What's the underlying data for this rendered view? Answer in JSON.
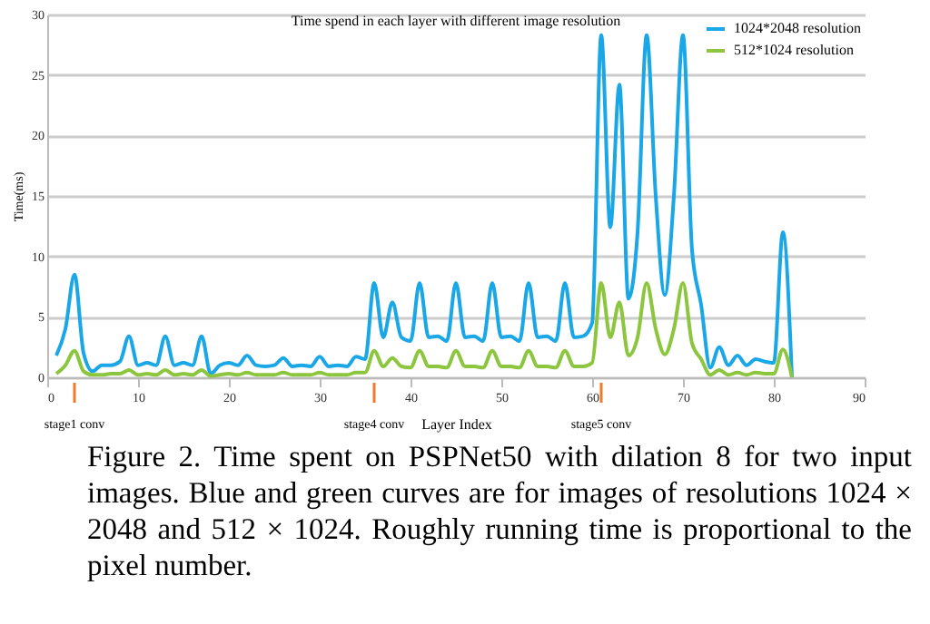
{
  "chart_data": {
    "type": "line",
    "title": "Time spend  in each layer  with different image resolution",
    "xlabel": "Layer Index",
    "ylabel": "Time(ms)",
    "x": [
      1,
      2,
      3,
      4,
      5,
      6,
      7,
      8,
      9,
      10,
      11,
      12,
      13,
      14,
      15,
      16,
      17,
      18,
      19,
      20,
      21,
      22,
      23,
      24,
      25,
      26,
      27,
      28,
      29,
      30,
      31,
      32,
      33,
      34,
      35,
      36,
      37,
      38,
      39,
      40,
      41,
      42,
      43,
      44,
      45,
      46,
      47,
      48,
      49,
      50,
      51,
      52,
      53,
      54,
      55,
      56,
      57,
      58,
      59,
      60,
      61,
      62,
      63,
      64,
      65,
      66,
      67,
      68,
      69,
      70,
      71,
      72,
      73,
      74,
      75,
      76,
      77,
      78,
      79,
      80,
      81,
      82
    ],
    "series": [
      {
        "name": "1024*2048 resolution",
        "color": "#1aa7e8",
        "values": [
          1.8,
          4.0,
          8.5,
          2.0,
          0.5,
          1.0,
          1.0,
          1.3,
          3.4,
          1.0,
          1.2,
          1.0,
          3.4,
          1.0,
          1.2,
          1.0,
          3.4,
          0.3,
          1.0,
          1.2,
          1.0,
          1.8,
          1.0,
          0.9,
          1.0,
          1.6,
          0.9,
          1.0,
          0.9,
          1.7,
          0.9,
          1.0,
          0.9,
          1.7,
          1.5,
          7.8,
          3.3,
          6.2,
          3.3,
          3.0,
          7.8,
          3.3,
          3.4,
          3.0,
          7.8,
          3.3,
          3.4,
          3.0,
          7.8,
          3.3,
          3.4,
          3.0,
          7.8,
          3.3,
          3.4,
          3.0,
          7.8,
          3.3,
          3.4,
          4.5,
          28.3,
          12.4,
          24.2,
          6.5,
          12.0,
          28.3,
          15.0,
          6.8,
          15.0,
          28.3,
          10.5,
          6.0,
          0.8,
          2.5,
          1.0,
          1.8,
          1.0,
          1.5,
          1.3,
          1.2,
          12.0,
          0
        ]
      },
      {
        "name": "512*1024 resolution",
        "color": "#8cc63f",
        "values": [
          0.3,
          1.0,
          2.2,
          0.5,
          0.2,
          0.2,
          0.3,
          0.3,
          0.6,
          0.2,
          0.3,
          0.2,
          0.6,
          0.2,
          0.3,
          0.2,
          0.6,
          0.1,
          0.2,
          0.3,
          0.2,
          0.4,
          0.2,
          0.2,
          0.2,
          0.4,
          0.2,
          0.2,
          0.2,
          0.4,
          0.2,
          0.2,
          0.2,
          0.4,
          0.4,
          2.2,
          0.9,
          1.6,
          0.9,
          0.8,
          2.2,
          0.9,
          0.9,
          0.8,
          2.2,
          0.9,
          0.9,
          0.8,
          2.2,
          0.9,
          0.9,
          0.8,
          2.2,
          0.9,
          0.9,
          0.8,
          2.2,
          0.9,
          0.9,
          1.2,
          7.8,
          3.3,
          6.2,
          1.8,
          3.3,
          7.8,
          4.0,
          1.9,
          4.0,
          7.8,
          2.8,
          1.5,
          0.2,
          0.6,
          0.2,
          0.4,
          0.2,
          0.4,
          0.3,
          0.3,
          2.3,
          0
        ]
      }
    ],
    "xlim": [
      0,
      90
    ],
    "xticks": [
      0,
      10,
      20,
      30,
      40,
      50,
      60,
      70,
      80,
      90
    ],
    "ylim": [
      0,
      30
    ],
    "yticks": [
      0,
      5,
      10,
      15,
      20,
      25,
      30
    ],
    "grid": "y",
    "legend": "top right",
    "annotations": [
      {
        "text": "stage1 conv",
        "x": 3
      },
      {
        "text": "stage4 conv",
        "x": 36
      },
      {
        "text": "stage5 conv",
        "x": 61
      },
      "Figure 2. Time spent on PSPNet50 with dilation 8 for two input images. Blue and green curves are for images of resolutions 1024 × 2048 and 512 × 1024. Roughly running time is proportional to the pixel number."
    ]
  }
}
